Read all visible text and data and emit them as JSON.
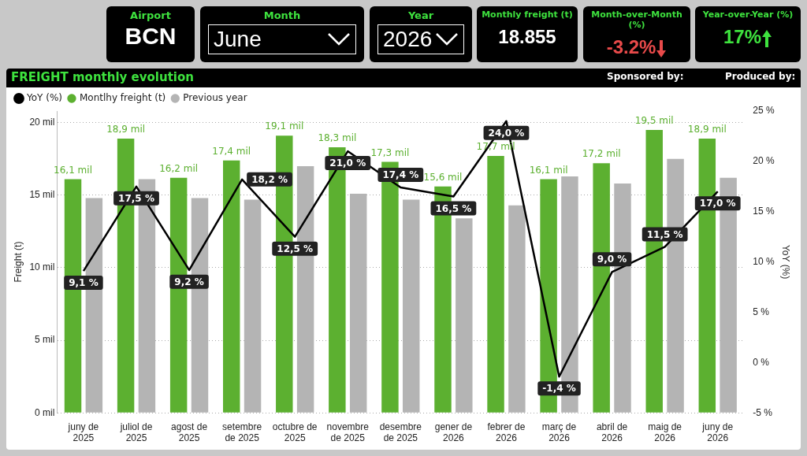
{
  "chart_data": {
    "type": "bar",
    "title": "FREIGHT monthly evolution",
    "ylabel": "Freight (t)",
    "y2label": "YoY (%)",
    "categories": [
      "juny de 2025",
      "juliol de 2025",
      "agost de 2025",
      "setembre de 2025",
      "octubre de 2025",
      "novembre de 2025",
      "desembre de 2025",
      "gener de 2026",
      "febrer de 2026",
      "març de 2026",
      "abril de 2026",
      "maig de 2026",
      "juny de 2026"
    ],
    "series": [
      {
        "name": "Montlhy freight (t)",
        "color": "#5cb030",
        "values": [
          16.1,
          18.9,
          16.2,
          17.4,
          19.1,
          18.3,
          17.3,
          15.6,
          17.7,
          16.1,
          17.2,
          19.5,
          18.9
        ],
        "value_labels": [
          "16,1 mil",
          "18,9 mil",
          "16,2 mil",
          "17,4 mil",
          "19,1 mil",
          "18,3 mil",
          "17,3 mil",
          "15,6 mil",
          "17,7 mil",
          "16,1 mil",
          "17,2 mil",
          "19,5 mil",
          "18,9 mil"
        ]
      },
      {
        "name": "Previous year",
        "color": "#b4b4b4",
        "values": [
          14.8,
          16.1,
          14.8,
          14.7,
          17.0,
          15.1,
          14.7,
          13.4,
          14.3,
          16.3,
          15.8,
          17.5,
          16.2
        ]
      },
      {
        "name": "YoY (%)",
        "type": "line",
        "axis": "y2",
        "color": "#000000",
        "values": [
          9.1,
          17.5,
          9.2,
          18.2,
          12.5,
          21.0,
          17.4,
          16.5,
          24.0,
          -1.4,
          9.0,
          11.5,
          17.0
        ],
        "value_labels": [
          "9,1 %",
          "17,5 %",
          "9,2 %",
          "18,2 %",
          "12,5 %",
          "21,0 %",
          "17,4 %",
          "16,5 %",
          "24,0 %",
          "-1,4 %",
          "9,0 %",
          "11,5 %",
          "17,0 %"
        ]
      }
    ],
    "ylim": [
      0,
      20.8
    ],
    "yticks": [
      {
        "value": 0,
        "label": "0 mil"
      },
      {
        "value": 5,
        "label": "5 mil"
      },
      {
        "value": 10,
        "label": "10 mil"
      },
      {
        "value": 15,
        "label": "15 mil"
      },
      {
        "value": 20,
        "label": "20 mil"
      }
    ],
    "y2lim": [
      -5,
      25
    ],
    "y2ticks": [
      {
        "value": -5,
        "label": "-5 %"
      },
      {
        "value": 0,
        "label": "0 %"
      },
      {
        "value": 5,
        "label": "5 %"
      },
      {
        "value": 10,
        "label": "10 %"
      },
      {
        "value": 15,
        "label": "15 %"
      },
      {
        "value": 20,
        "label": "20 %"
      },
      {
        "value": 25,
        "label": "25 %"
      }
    ],
    "grid": "y",
    "legend": "top left",
    "marker": "none",
    "line_style": "solid",
    "annotations": [
      "Airport",
      "BCN",
      "Month",
      "June",
      "Year",
      "2026",
      "Monthly freight (t)",
      "18.855",
      "Month-over-Month (%)",
      "-3.2%",
      "Year-over-Year (%)",
      "17%",
      "Sponsored by:",
      "Produced by:"
    ]
  }
}
